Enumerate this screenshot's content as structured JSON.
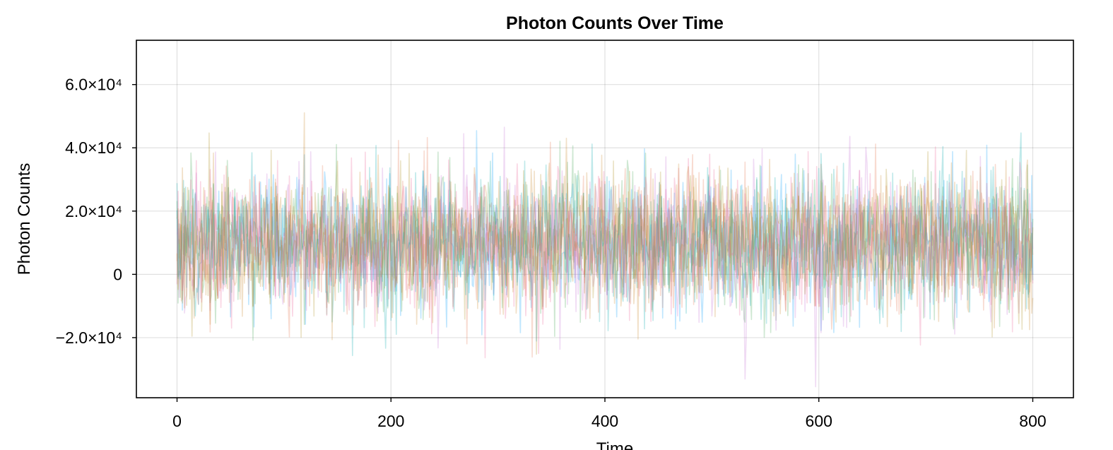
{
  "chart_data": {
    "type": "line",
    "title": "Photon Counts Over Time",
    "xlabel": "Time",
    "ylabel": "Photon Counts",
    "xlim": [
      -38,
      838
    ],
    "ylim": [
      -39000,
      74000
    ],
    "grid": true,
    "legend": "none",
    "x_ticks": [
      {
        "value": 0,
        "label": "0"
      },
      {
        "value": 200,
        "label": "200"
      },
      {
        "value": 400,
        "label": "400"
      },
      {
        "value": 600,
        "label": "600"
      },
      {
        "value": 800,
        "label": "800"
      }
    ],
    "y_ticks": [
      {
        "value": -20000,
        "label": "−2.0×10⁴"
      },
      {
        "value": 0,
        "label": "0"
      },
      {
        "value": 20000,
        "label": "2.0×10⁴"
      },
      {
        "value": 40000,
        "label": "4.0×10⁴"
      },
      {
        "value": 60000,
        "label": "6.0×10⁴"
      }
    ],
    "series_colors": [
      "#009AFA",
      "#E36F47",
      "#3EA44E",
      "#C271D2",
      "#AC8D18",
      "#00A9AD",
      "#ED5D92",
      "#C68225"
    ],
    "series_opacity": 0.25,
    "series": [
      {
        "mean": 10000,
        "std": 11000,
        "x_start": 0,
        "x_end": 800,
        "n_points": 801
      },
      {
        "mean": 10000,
        "std": 11000,
        "x_start": 0,
        "x_end": 800,
        "n_points": 801
      },
      {
        "mean": 10000,
        "std": 11000,
        "x_start": 0,
        "x_end": 800,
        "n_points": 801
      },
      {
        "mean": 10000,
        "std": 11000,
        "x_start": 0,
        "x_end": 800,
        "n_points": 801
      },
      {
        "mean": 10000,
        "std": 11000,
        "x_start": 0,
        "x_end": 800,
        "n_points": 801
      },
      {
        "mean": 10000,
        "std": 11000,
        "x_start": 0,
        "x_end": 800,
        "n_points": 801
      },
      {
        "mean": 10000,
        "std": 11000,
        "x_start": 0,
        "x_end": 800,
        "n_points": 801
      },
      {
        "mean": 10000,
        "std": 11000,
        "x_start": 0,
        "x_end": 800,
        "n_points": 801
      }
    ]
  }
}
